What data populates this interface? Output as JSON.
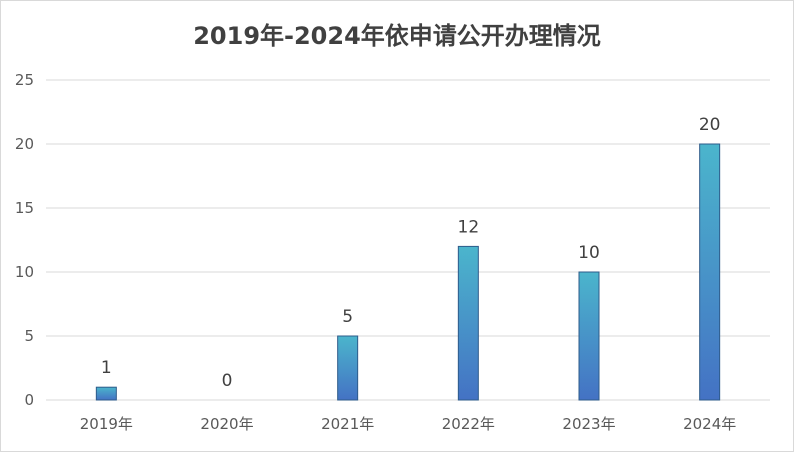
{
  "chart_data": {
    "type": "bar",
    "title": "2019年-2024年依申请公开办理情况",
    "categories": [
      "2019年",
      "2020年",
      "2021年",
      "2022年",
      "2023年",
      "2024年"
    ],
    "values": [
      1,
      0,
      5,
      12,
      10,
      20
    ],
    "ylim": [
      0,
      25
    ],
    "yticks": [
      0,
      5,
      10,
      15,
      20,
      25
    ],
    "grid": true,
    "legend": "none",
    "data_labels": true
  },
  "colors": {
    "bar_top": "#4bb5cc",
    "bar_bottom": "#4472c4",
    "bar_edge": "#2e5b8a",
    "grid": "#d9d9d9"
  }
}
